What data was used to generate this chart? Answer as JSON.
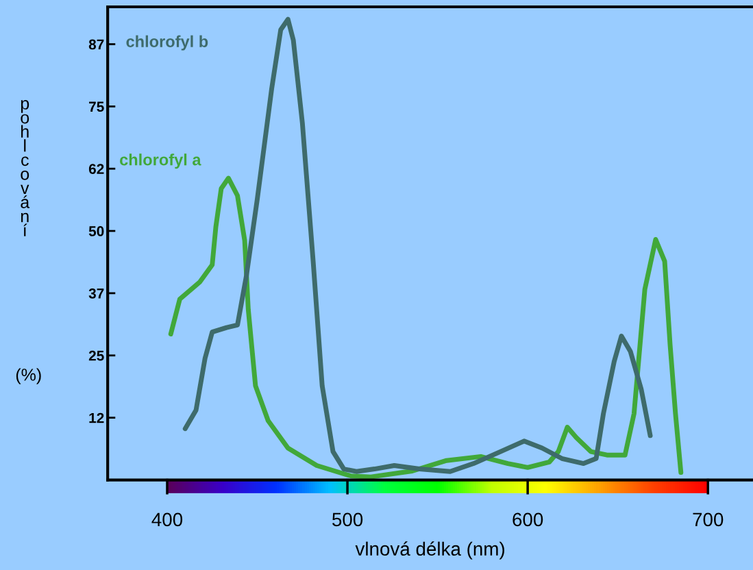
{
  "chart_data": {
    "type": "line",
    "xlabel": "vlnová délka (nm)",
    "ylabel": "pohlcování (%)",
    "xlim": [
      367,
      725
    ],
    "xticks": [
      400,
      500,
      600,
      700
    ],
    "ylim": [
      0,
      95
    ],
    "yticks": [
      {
        "value": 12.5,
        "label": "12"
      },
      {
        "value": 25,
        "label": "25"
      },
      {
        "value": 37.5,
        "label": "37"
      },
      {
        "value": 50,
        "label": "50"
      },
      {
        "value": 62.5,
        "label": "62"
      },
      {
        "value": 75,
        "label": "75"
      },
      {
        "value": 87.5,
        "label": "87"
      }
    ],
    "grid": false,
    "legend": false,
    "marker": "none",
    "line_style": "solid",
    "series": [
      {
        "name": "chlorofyl a",
        "color": "#41a83a",
        "x": [
          402,
          407,
          418,
          425,
          427,
          430,
          434,
          439,
          443,
          445,
          449,
          456,
          467,
          483,
          502,
          513,
          536,
          555,
          574,
          589,
          600,
          612,
          617,
          622,
          627,
          635,
          644,
          654,
          659,
          665,
          671,
          676,
          679,
          682,
          685
        ],
        "values": [
          29.3,
          36.3,
          39.7,
          43.2,
          50.8,
          58.5,
          60.6,
          57.1,
          48.1,
          34.2,
          18.9,
          11.9,
          6.4,
          2.9,
          0.8,
          0.6,
          1.8,
          3.9,
          4.7,
          3.3,
          2.5,
          3.6,
          5.7,
          10.6,
          8.5,
          5.7,
          5.0,
          5.0,
          13.3,
          38.3,
          48.3,
          43.9,
          27.2,
          13.3,
          1.5
        ]
      },
      {
        "name": "chlorofyl b",
        "color": "#3e6b6b",
        "x": [
          410,
          416,
          421,
          425,
          433,
          439,
          444,
          450,
          458,
          463,
          467,
          470,
          475,
          481,
          486,
          492,
          498,
          505,
          515,
          526,
          540,
          557,
          570,
          585,
          598,
          608,
          619,
          631,
          638,
          642,
          648,
          652,
          657,
          663,
          668
        ],
        "values": [
          10.3,
          14.0,
          24.4,
          29.7,
          30.6,
          31.1,
          41.1,
          56.4,
          78.6,
          90.4,
          92.5,
          88.3,
          71.7,
          43.9,
          18.9,
          5.7,
          2.2,
          1.7,
          2.2,
          2.9,
          2.2,
          1.7,
          3.3,
          5.7,
          7.8,
          6.4,
          4.3,
          3.3,
          4.3,
          13.3,
          23.8,
          28.9,
          25.8,
          18.2,
          8.9
        ]
      }
    ]
  }
}
